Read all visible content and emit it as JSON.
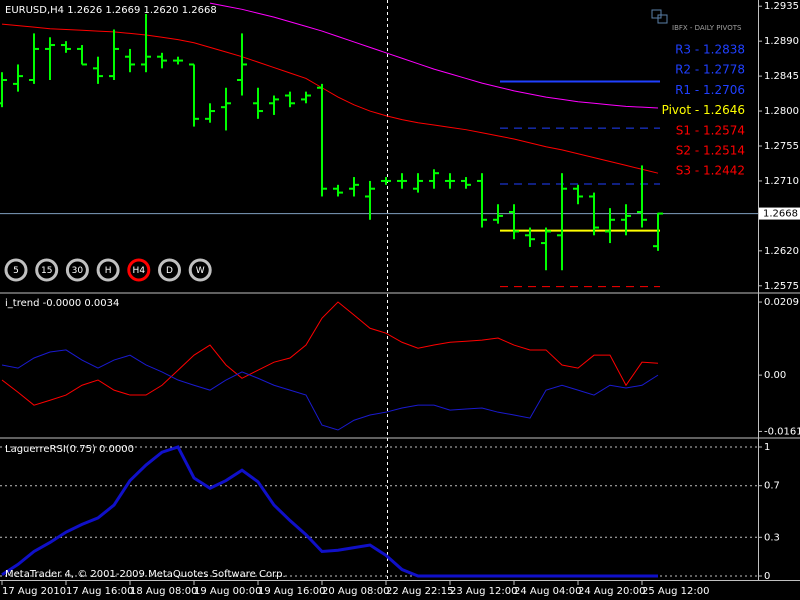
{
  "chart_data": [
    {
      "type": "ohlc",
      "title": "EURUSD,H4  1.2626 1.2669 1.2620 1.2668",
      "color": "#00ff00",
      "categories": [
        "17 Aug 2010",
        null,
        null,
        null,
        "17 Aug 16:00",
        null,
        null,
        null,
        "18 Aug 08:00",
        null,
        null,
        null,
        "19 Aug 00:00",
        null,
        null,
        null,
        "19 Aug 16:00",
        null,
        null,
        null,
        "20 Aug 08:00",
        null,
        null,
        null,
        "22 Aug 22:15",
        null,
        null,
        null,
        "23 Aug 12:00",
        null,
        null,
        null,
        "24 Aug 04:00",
        null,
        null,
        null,
        "24 Aug 20:00",
        null,
        null,
        null,
        "25 Aug 12:00",
        null
      ],
      "open": [
        1.281,
        1.2835,
        1.284,
        1.288,
        1.2885,
        1.288,
        1.2855,
        1.2845,
        1.287,
        1.286,
        1.287,
        1.2865,
        1.286,
        1.279,
        1.2805,
        1.284,
        1.281,
        1.281,
        1.282,
        1.2815,
        1.283,
        1.27,
        1.27,
        1.269,
        1.271,
        1.271,
        1.27,
        1.271,
        1.271,
        1.271,
        1.271,
        1.266,
        1.267,
        1.264,
        1.263,
        1.264,
        1.27,
        1.269,
        1.2645,
        1.266,
        1.267,
        1.2626
      ],
      "high": [
        1.285,
        1.286,
        1.29,
        1.2895,
        1.289,
        1.2885,
        1.287,
        1.2905,
        1.288,
        1.2925,
        1.2875,
        1.287,
        1.286,
        1.281,
        1.283,
        1.29,
        1.283,
        1.282,
        1.2825,
        1.2825,
        1.2835,
        1.2705,
        1.2715,
        1.271,
        1.2715,
        1.272,
        1.272,
        1.2725,
        1.272,
        1.2715,
        1.272,
        1.268,
        1.268,
        1.265,
        1.265,
        1.272,
        1.2705,
        1.2695,
        1.2675,
        1.268,
        1.273,
        1.2669
      ],
      "low": [
        1.2805,
        1.2825,
        1.2835,
        1.284,
        1.2875,
        1.286,
        1.2835,
        1.284,
        1.285,
        1.285,
        1.2855,
        1.286,
        1.278,
        1.2785,
        1.2775,
        1.282,
        1.279,
        1.2795,
        1.2805,
        1.281,
        1.269,
        1.269,
        1.269,
        1.266,
        1.2705,
        1.27,
        1.2695,
        1.27,
        1.27,
        1.27,
        1.265,
        1.2655,
        1.2635,
        1.2625,
        1.2595,
        1.2595,
        1.268,
        1.264,
        1.263,
        1.264,
        1.265,
        1.262
      ],
      "close": [
        1.284,
        1.2845,
        1.288,
        1.2885,
        1.288,
        1.286,
        1.2845,
        1.288,
        1.286,
        1.287,
        1.2865,
        1.2865,
        1.279,
        1.28,
        1.281,
        1.286,
        1.28,
        1.2815,
        1.281,
        1.282,
        1.27,
        1.2695,
        1.2705,
        1.27,
        1.271,
        1.271,
        1.271,
        1.272,
        1.271,
        1.2705,
        1.266,
        1.2665,
        1.2645,
        1.2635,
        1.2645,
        1.27,
        1.269,
        1.265,
        1.266,
        1.2665,
        1.266,
        1.2668
      ],
      "overlays": [
        {
          "color": "#ff0000",
          "values": [
            1.2912,
            1.291,
            1.2908,
            1.2906,
            1.2905,
            1.2904,
            1.2903,
            1.2902,
            1.29,
            1.2898,
            1.2895,
            1.2892,
            1.2888,
            1.2882,
            1.2876,
            1.287,
            1.2863,
            1.2856,
            1.2849,
            1.2842,
            1.283,
            1.2818,
            1.2808,
            1.28,
            1.2794,
            1.2789,
            1.2785,
            1.2782,
            1.2779,
            1.2776,
            1.2772,
            1.2768,
            1.2764,
            1.2759,
            1.2754,
            1.275,
            1.2745,
            1.274,
            1.2735,
            1.273,
            1.2725,
            1.272
          ]
        },
        {
          "color": "#ff00ff",
          "values": [
            null,
            null,
            null,
            null,
            null,
            null,
            null,
            null,
            null,
            null,
            null,
            null,
            null,
            1.2939,
            1.2935,
            1.2931,
            1.2926,
            1.2921,
            1.2915,
            1.2909,
            1.2903,
            1.2896,
            1.2889,
            1.2882,
            1.2875,
            1.2868,
            1.2861,
            1.2854,
            1.2848,
            1.2842,
            1.2836,
            1.2831,
            1.2826,
            1.2822,
            1.2818,
            1.2815,
            1.2812,
            1.281,
            1.2808,
            1.2806,
            1.2805,
            1.2804
          ]
        }
      ],
      "ylim": [
        1.2567,
        1.2943
      ],
      "yticks": [
        1.2935,
        {
          "value": 1.289,
          "label": "1.2890"
        },
        1.2845,
        {
          "value": 1.28,
          "label": "1.2800"
        },
        1.2755,
        {
          "value": 1.271,
          "label": "1.2710"
        },
        {
          "value": 1.262,
          "label": "1.2620"
        },
        1.2575
      ],
      "last_price": 1.2668,
      "last_price_color": "#7f9fbf",
      "pivots": {
        "title": "IBFX - DAILY PIVOTS",
        "levels": [
          {
            "label": "R3 - 1.2838",
            "value": 1.2838,
            "color": "#2040ff",
            "style": "solid"
          },
          {
            "label": "R2 - 1.2778",
            "value": 1.2778,
            "color": "#2040ff",
            "style": "dashed"
          },
          {
            "label": "R1 - 1.2706",
            "value": 1.2706,
            "color": "#2040ff",
            "style": "dashed"
          },
          {
            "label": "Pivot - 1.2646",
            "value": 1.2646,
            "color": "#ffff00",
            "style": "solid"
          },
          {
            "label": "S1 - 1.2574",
            "value": 1.2574,
            "color": "#ff0000",
            "style": "dashed"
          },
          {
            "label": "S2 - 1.2514",
            "value": 1.2514,
            "color": "#ff0000",
            "style": "dashed"
          },
          {
            "label": "S3 - 1.2442",
            "value": 1.2442,
            "color": "#ff0000",
            "style": "dashed"
          }
        ]
      },
      "timeframe_buttons": [
        {
          "label": "5",
          "color": "#c0c0c0"
        },
        {
          "label": "15",
          "color": "#c0c0c0"
        },
        {
          "label": "30",
          "color": "#c0c0c0"
        },
        {
          "label": "H",
          "color": "#c0c0c0"
        },
        {
          "label": "H4",
          "color": "#ff0000"
        },
        {
          "label": "D",
          "color": "#c0c0c0"
        },
        {
          "label": "W",
          "color": "#c0c0c0"
        }
      ]
    },
    {
      "type": "line",
      "title": "i_trend -0.0000 0.0034",
      "series": [
        {
          "color": "#ff0000",
          "values": [
            -0.0014,
            -0.0049,
            -0.0086,
            -0.0072,
            -0.0057,
            -0.0029,
            -0.0014,
            -0.0043,
            -0.0057,
            -0.0057,
            -0.0029,
            0.0014,
            0.0057,
            0.0086,
            0.0029,
            -0.0009,
            0.0014,
            0.0037,
            0.0049,
            0.0086,
            0.0163,
            0.0209,
            0.0172,
            0.0134,
            0.012,
            0.0094,
            0.0077,
            0.0086,
            0.0094,
            0.0097,
            0.01,
            0.0106,
            0.0086,
            0.0072,
            0.0072,
            0.0029,
            0.002,
            0.0057,
            0.0057,
            -0.0029,
            0.0037,
            0.0034
          ]
        },
        {
          "color": "#1a1ad0",
          "values": [
            0.0029,
            0.002,
            0.0049,
            0.0066,
            0.0072,
            0.0043,
            0.002,
            0.0043,
            0.0057,
            0.0029,
            0.0009,
            -0.0014,
            -0.0029,
            -0.0043,
            -0.0014,
            0.0009,
            -0.0009,
            -0.0029,
            -0.0043,
            -0.0057,
            -0.0143,
            -0.0157,
            -0.0129,
            -0.0114,
            -0.0106,
            -0.0094,
            -0.0086,
            -0.0086,
            -0.01,
            -0.0097,
            -0.0094,
            -0.0106,
            -0.0114,
            -0.0123,
            -0.0043,
            -0.0029,
            -0.0043,
            -0.0057,
            -0.0029,
            -0.0037,
            -0.0029,
            0
          ]
        }
      ],
      "ylim": [
        -0.0177,
        0.0232
      ],
      "yticks": [
        0.0209,
        {
          "value": 0,
          "label": "0.00"
        },
        -0.0161
      ],
      "grid": false
    },
    {
      "type": "line",
      "title": "LaguerreRSI(0.75) 0.0000",
      "series": [
        {
          "color": "#1010c8",
          "values": [
            0.01,
            0.09,
            0.19,
            0.26,
            0.34,
            0.4,
            0.45,
            0.55,
            0.74,
            0.86,
            0.96,
            1.0,
            0.76,
            0.68,
            0.74,
            0.82,
            0.73,
            0.55,
            0.43,
            0.32,
            0.19,
            0.2,
            0.22,
            0.24,
            0.16,
            0.05,
            0,
            0,
            0,
            0,
            0,
            0,
            0,
            0,
            0,
            0,
            0,
            0,
            0,
            0,
            0,
            0
          ]
        }
      ],
      "ylim": [
        -0.031,
        1.062
      ],
      "yticks": [
        1,
        0.7,
        0.3,
        0
      ],
      "grid": true
    }
  ],
  "footer": "MetaTrader 4, © 2001-2009 MetaQuotes Software Corp."
}
